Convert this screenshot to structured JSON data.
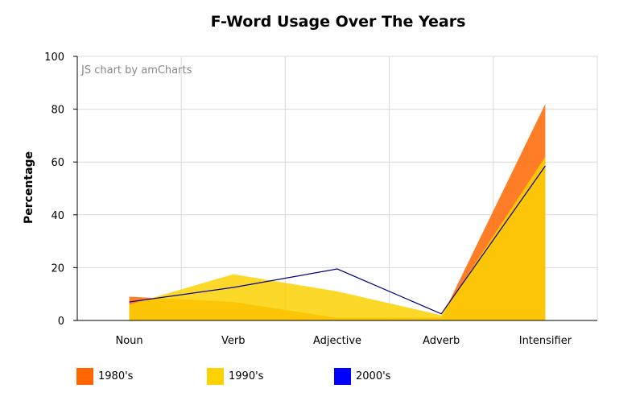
{
  "chart_data": {
    "type": "area",
    "title": "F-Word Usage Over The Years",
    "ylabel": "Percentage",
    "xlabel": "",
    "credit": "JS chart by amCharts",
    "categories": [
      "Noun",
      "Verb",
      "Adjective",
      "Adverb",
      "Intensifier"
    ],
    "ylim": [
      0,
      100
    ],
    "yticks": [
      0,
      20,
      40,
      60,
      80,
      100
    ],
    "grid": true,
    "legend_position": "bottom",
    "series": [
      {
        "name": "1980's",
        "values": [
          9,
          7,
          1,
          1,
          82
        ],
        "color": "#FF6600",
        "style": "area"
      },
      {
        "name": "1990's",
        "values": [
          6,
          17.5,
          11,
          2,
          62
        ],
        "color": "#FCD202",
        "style": "area"
      },
      {
        "name": "2000's",
        "values": [
          7,
          12.5,
          19.5,
          2.5,
          58.5
        ],
        "color": "#0000FF",
        "style": "line"
      }
    ]
  }
}
